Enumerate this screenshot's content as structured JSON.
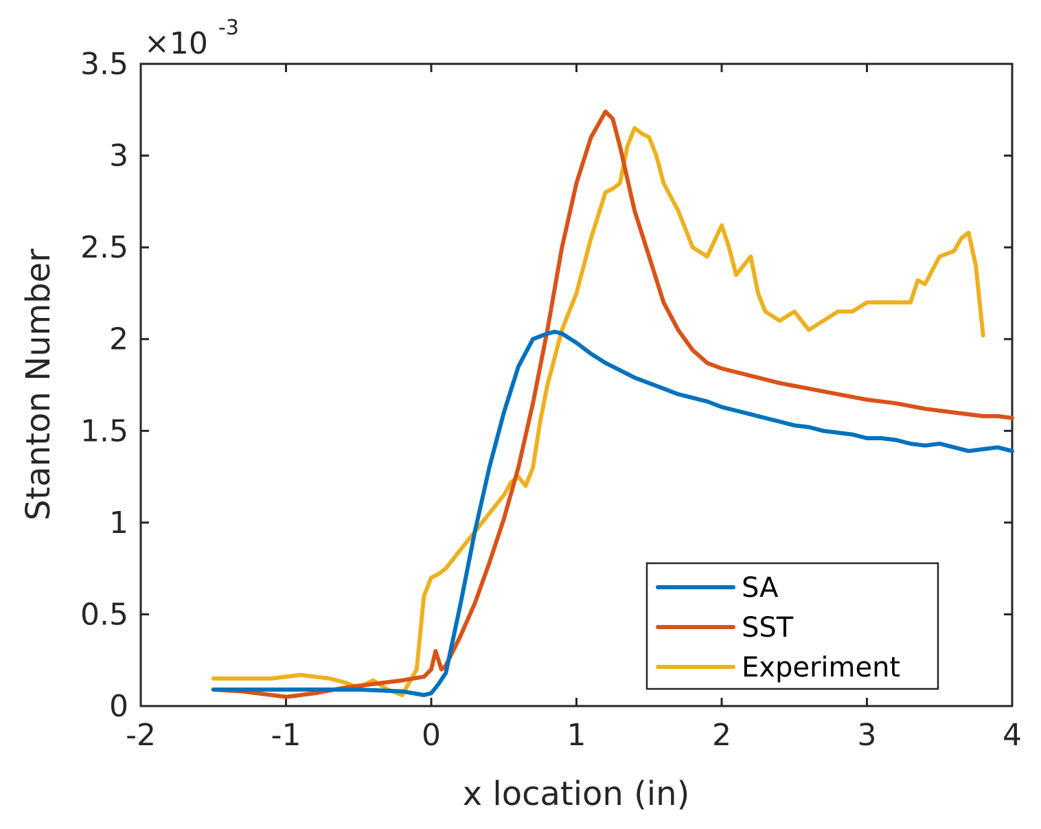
{
  "chart_data": {
    "type": "line",
    "title": "",
    "xlabel": "x location (in)",
    "ylabel": "Stanton Number",
    "xlim": [
      -2,
      4
    ],
    "ylim": [
      0,
      3.5
    ],
    "y_exponent_label": {
      "base": "×10",
      "power": "-3"
    },
    "x_ticks": [
      -2,
      -1,
      0,
      1,
      2,
      3,
      4
    ],
    "x_tick_labels": [
      "-2",
      "-1",
      "0",
      "1",
      "2",
      "3",
      "4"
    ],
    "y_ticks": [
      0,
      0.5,
      1,
      1.5,
      2,
      2.5,
      3,
      3.5
    ],
    "y_tick_labels": [
      "0",
      "0.5",
      "1",
      "1.5",
      "2",
      "2.5",
      "3",
      "3.5"
    ],
    "grid": false,
    "legend_position": "bottom-right",
    "series": [
      {
        "name": "SA",
        "color": "#0072BD",
        "x": [
          -1.5,
          -1.2,
          -1.0,
          -0.8,
          -0.5,
          -0.2,
          -0.05,
          0.0,
          0.05,
          0.1,
          0.2,
          0.3,
          0.4,
          0.5,
          0.6,
          0.7,
          0.8,
          0.85,
          0.9,
          1.0,
          1.1,
          1.2,
          1.3,
          1.4,
          1.5,
          1.6,
          1.7,
          1.8,
          1.9,
          2.0,
          2.1,
          2.2,
          2.3,
          2.4,
          2.5,
          2.6,
          2.7,
          2.8,
          2.9,
          3.0,
          3.1,
          3.2,
          3.3,
          3.4,
          3.5,
          3.6,
          3.7,
          3.8,
          3.9,
          4.0
        ],
        "values": [
          0.09,
          0.09,
          0.09,
          0.09,
          0.09,
          0.08,
          0.06,
          0.07,
          0.12,
          0.18,
          0.55,
          0.95,
          1.3,
          1.6,
          1.85,
          2.0,
          2.03,
          2.04,
          2.03,
          1.98,
          1.92,
          1.87,
          1.83,
          1.79,
          1.76,
          1.73,
          1.7,
          1.68,
          1.66,
          1.63,
          1.61,
          1.59,
          1.57,
          1.55,
          1.53,
          1.52,
          1.5,
          1.49,
          1.48,
          1.46,
          1.46,
          1.45,
          1.43,
          1.42,
          1.43,
          1.41,
          1.39,
          1.4,
          1.41,
          1.39
        ]
      },
      {
        "name": "SST",
        "color": "#D95319",
        "x": [
          -1.5,
          -1.3,
          -1.0,
          -0.8,
          -0.6,
          -0.4,
          -0.2,
          -0.05,
          0.0,
          0.03,
          0.07,
          0.1,
          0.2,
          0.3,
          0.4,
          0.5,
          0.6,
          0.7,
          0.8,
          0.9,
          1.0,
          1.1,
          1.2,
          1.25,
          1.3,
          1.4,
          1.5,
          1.6,
          1.7,
          1.8,
          1.9,
          2.0,
          2.2,
          2.4,
          2.6,
          2.8,
          3.0,
          3.2,
          3.4,
          3.6,
          3.8,
          3.9,
          4.0
        ],
        "values": [
          0.09,
          0.08,
          0.05,
          0.07,
          0.1,
          0.12,
          0.14,
          0.16,
          0.2,
          0.3,
          0.2,
          0.22,
          0.38,
          0.56,
          0.78,
          1.02,
          1.3,
          1.65,
          2.05,
          2.5,
          2.85,
          3.1,
          3.24,
          3.2,
          3.05,
          2.7,
          2.45,
          2.2,
          2.05,
          1.94,
          1.87,
          1.84,
          1.8,
          1.76,
          1.73,
          1.7,
          1.67,
          1.65,
          1.62,
          1.6,
          1.58,
          1.58,
          1.57
        ]
      },
      {
        "name": "Experiment",
        "color": "#EDB120",
        "x": [
          -1.5,
          -1.3,
          -1.1,
          -0.9,
          -0.8,
          -0.7,
          -0.6,
          -0.5,
          -0.4,
          -0.3,
          -0.2,
          -0.1,
          -0.05,
          0.0,
          0.05,
          0.1,
          0.2,
          0.3,
          0.4,
          0.5,
          0.55,
          0.6,
          0.65,
          0.7,
          0.75,
          0.8,
          0.9,
          1.0,
          1.1,
          1.2,
          1.25,
          1.3,
          1.35,
          1.4,
          1.45,
          1.5,
          1.55,
          1.6,
          1.7,
          1.8,
          1.9,
          2.0,
          2.05,
          2.1,
          2.2,
          2.25,
          2.3,
          2.4,
          2.5,
          2.6,
          2.7,
          2.8,
          2.9,
          3.0,
          3.1,
          3.2,
          3.3,
          3.35,
          3.4,
          3.5,
          3.6,
          3.65,
          3.7,
          3.75,
          3.8
        ],
        "values": [
          0.15,
          0.15,
          0.15,
          0.17,
          0.16,
          0.15,
          0.13,
          0.1,
          0.14,
          0.09,
          0.06,
          0.2,
          0.6,
          0.7,
          0.72,
          0.75,
          0.85,
          0.95,
          1.05,
          1.15,
          1.22,
          1.25,
          1.2,
          1.3,
          1.55,
          1.75,
          2.05,
          2.25,
          2.55,
          2.8,
          2.82,
          2.85,
          3.05,
          3.15,
          3.12,
          3.1,
          3.0,
          2.85,
          2.7,
          2.5,
          2.45,
          2.62,
          2.5,
          2.35,
          2.45,
          2.25,
          2.15,
          2.1,
          2.15,
          2.05,
          2.1,
          2.15,
          2.15,
          2.2,
          2.2,
          2.2,
          2.2,
          2.32,
          2.3,
          2.45,
          2.48,
          2.55,
          2.58,
          2.4,
          2.02
        ]
      }
    ]
  }
}
